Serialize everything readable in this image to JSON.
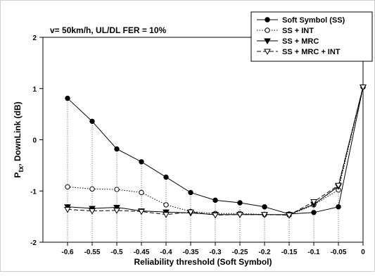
{
  "chart_data": {
    "type": "line",
    "annotation": "v= 50km/h, UL/DL FER = 10%",
    "xlabel": "Reliability threshold (Soft Symbol)",
    "ylabel_main": "P",
    "ylabel_sub": "tx",
    "ylabel_rest": ", DownLink (dB)",
    "xlim": [
      -0.65,
      0
    ],
    "ylim": [
      -2,
      2
    ],
    "x": [
      -0.6,
      -0.55,
      -0.5,
      -0.45,
      -0.4,
      -0.35,
      -0.3,
      -0.25,
      -0.2,
      -0.15,
      -0.1,
      -0.05,
      0
    ],
    "x_ticks": [
      "-0.6",
      "-0.55",
      "-0.5",
      "-0.45",
      "-0.4",
      "-0.35",
      "-0.3",
      "-0.25",
      "-0.2",
      "-0.15",
      "-0.1",
      "-0.05",
      "0"
    ],
    "y_ticks": [
      "2",
      "1",
      "0",
      "-1",
      "-2"
    ],
    "y_tick_values": [
      2,
      1,
      0,
      -1,
      -2
    ],
    "legend_position": "top-right",
    "series": [
      {
        "name": "Soft Symbol (SS)",
        "marker": "filled-circle",
        "line": "solid",
        "values": [
          0.81,
          0.36,
          -0.18,
          -0.43,
          -0.73,
          -1.03,
          -1.18,
          -1.23,
          -1.31,
          -1.45,
          -1.42,
          -1.31,
          1.03
        ]
      },
      {
        "name": "SS + INT",
        "marker": "open-circle",
        "line": "dotted",
        "values": [
          -0.92,
          -0.96,
          -0.97,
          -1.03,
          -1.27,
          -1.4,
          -1.44,
          -1.44,
          -1.46,
          -1.47,
          -1.27,
          -0.98,
          1.03
        ]
      },
      {
        "name": "SS + MRC",
        "marker": "filled-triangle-down",
        "line": "solid",
        "values": [
          -1.31,
          -1.34,
          -1.32,
          -1.39,
          -1.41,
          -1.43,
          -1.46,
          -1.46,
          -1.46,
          -1.46,
          -1.26,
          -0.91,
          1.03
        ]
      },
      {
        "name": "SS + MRC + INT",
        "marker": "open-triangle-down",
        "line": "dashed",
        "values": [
          -1.36,
          -1.39,
          -1.38,
          -1.4,
          -1.46,
          -1.41,
          -1.47,
          -1.46,
          -1.46,
          -1.47,
          -1.21,
          -0.89,
          1.03
        ]
      }
    ]
  }
}
